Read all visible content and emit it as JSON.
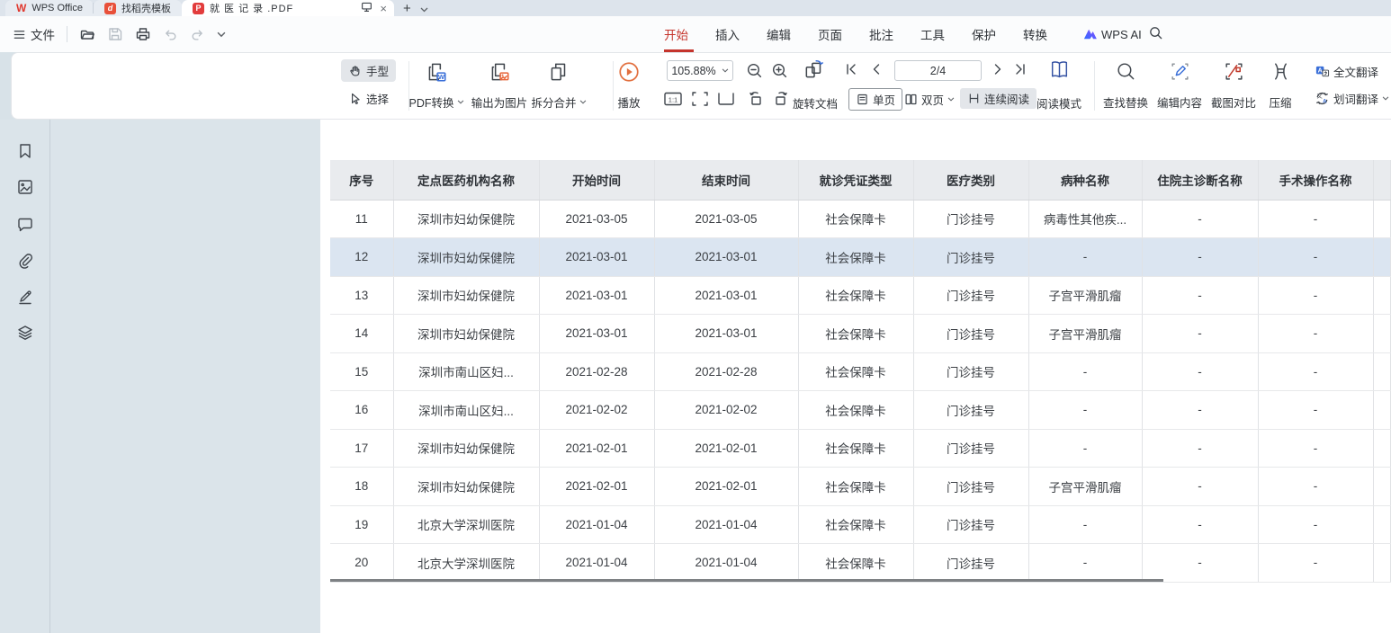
{
  "tabs": {
    "wps": "WPS Office",
    "docer": "找稻壳模板",
    "document": "就 医 记 录 .PDF"
  },
  "icons": {
    "close": "×",
    "plus": "+",
    "pdf_badge": "P",
    "docer_badge": "d",
    "wps_logo": "W",
    "one_to_one": "1:1"
  },
  "menubar": {
    "file": "文件",
    "items": [
      {
        "label": "开始",
        "active": true
      },
      {
        "label": "插入"
      },
      {
        "label": "编辑"
      },
      {
        "label": "页面"
      },
      {
        "label": "批注"
      },
      {
        "label": "工具"
      },
      {
        "label": "保护"
      },
      {
        "label": "转换"
      }
    ],
    "wps_ai": "WPS AI"
  },
  "toolbar": {
    "hand": "手型",
    "select": "选择",
    "pdf_convert": "PDF转换",
    "export_image": "输出为图片",
    "split_merge": "拆分合并",
    "play": "播放",
    "zoom_level": "105.88%",
    "page_indicator": "2/4",
    "rotate_doc": "旋转文档",
    "single_page": "单页",
    "double_page": "双页",
    "continuous": "连续阅读",
    "read_mode": "阅读模式",
    "find_replace": "查找替换",
    "edit_content": "编辑内容",
    "screenshot_compare": "截图对比",
    "compress": "压缩",
    "full_translate": "全文翻译",
    "word_translate": "划词翻译"
  },
  "table": {
    "headers": [
      "序号",
      "定点医药机构名称",
      "开始时间",
      "结束时间",
      "就诊凭证类型",
      "医疗类别",
      "病种名称",
      "住院主诊断名称",
      "手术操作名称"
    ],
    "rows": [
      {
        "highlight": false,
        "cells": [
          "11",
          "深圳市妇幼保健院",
          "2021-03-05",
          "2021-03-05",
          "社会保障卡",
          "门诊挂号",
          "病毒性其他疾...",
          "-",
          "-"
        ]
      },
      {
        "highlight": true,
        "cells": [
          "12",
          "深圳市妇幼保健院",
          "2021-03-01",
          "2021-03-01",
          "社会保障卡",
          "门诊挂号",
          "-",
          "-",
          "-"
        ]
      },
      {
        "highlight": false,
        "cells": [
          "13",
          "深圳市妇幼保健院",
          "2021-03-01",
          "2021-03-01",
          "社会保障卡",
          "门诊挂号",
          "子宫平滑肌瘤",
          "-",
          "-"
        ]
      },
      {
        "highlight": false,
        "cells": [
          "14",
          "深圳市妇幼保健院",
          "2021-03-01",
          "2021-03-01",
          "社会保障卡",
          "门诊挂号",
          "子宫平滑肌瘤",
          "-",
          "-"
        ]
      },
      {
        "highlight": false,
        "cells": [
          "15",
          "深圳市南山区妇...",
          "2021-02-28",
          "2021-02-28",
          "社会保障卡",
          "门诊挂号",
          "-",
          "-",
          "-"
        ]
      },
      {
        "highlight": false,
        "cells": [
          "16",
          "深圳市南山区妇...",
          "2021-02-02",
          "2021-02-02",
          "社会保障卡",
          "门诊挂号",
          "-",
          "-",
          "-"
        ]
      },
      {
        "highlight": false,
        "cells": [
          "17",
          "深圳市妇幼保健院",
          "2021-02-01",
          "2021-02-01",
          "社会保障卡",
          "门诊挂号",
          "-",
          "-",
          "-"
        ]
      },
      {
        "highlight": false,
        "cells": [
          "18",
          "深圳市妇幼保健院",
          "2021-02-01",
          "2021-02-01",
          "社会保障卡",
          "门诊挂号",
          "子宫平滑肌瘤",
          "-",
          "-"
        ]
      },
      {
        "highlight": false,
        "cells": [
          "19",
          "北京大学深圳医院",
          "2021-01-04",
          "2021-01-04",
          "社会保障卡",
          "门诊挂号",
          "-",
          "-",
          "-"
        ]
      },
      {
        "highlight": false,
        "cells": [
          "20",
          "北京大学深圳医院",
          "2021-01-04",
          "2021-01-04",
          "社会保障卡",
          "门诊挂号",
          "-",
          "-",
          "-"
        ]
      }
    ]
  }
}
